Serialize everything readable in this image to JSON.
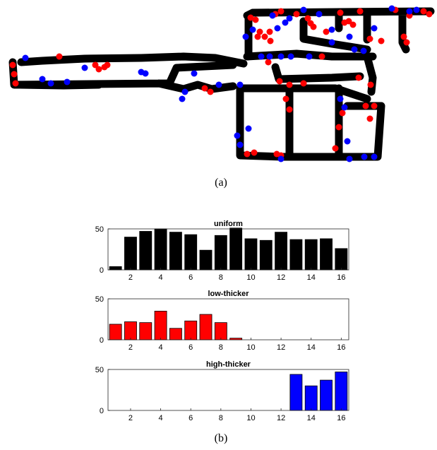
{
  "figure": {
    "caption_a": "(a)",
    "caption_b": "(b)"
  },
  "floor_plan": {
    "description_colors": {
      "path": "#000000",
      "red_points": "#ff0000",
      "blue_points": "#0000ff"
    }
  },
  "chart_data": [
    {
      "type": "bar",
      "title": "uniform",
      "xlabel": "",
      "ylabel": "",
      "x": [
        1,
        2,
        3,
        4,
        5,
        6,
        7,
        8,
        9,
        10,
        11,
        12,
        13,
        14,
        15,
        16
      ],
      "values": [
        4,
        40,
        47,
        50,
        46,
        43,
        24,
        42,
        51,
        38,
        36,
        46,
        37,
        37,
        38,
        26
      ],
      "xlim": [
        0.5,
        16.5
      ],
      "ylim": [
        0,
        50
      ],
      "xticks": [
        "2",
        "4",
        "6",
        "8",
        "10",
        "12",
        "14",
        "16"
      ],
      "yticks": [
        "0",
        "50"
      ],
      "color": "#000000"
    },
    {
      "type": "bar",
      "title": "low-thicker",
      "xlabel": "",
      "ylabel": "",
      "x": [
        1,
        2,
        3,
        4,
        5,
        6,
        7,
        8,
        9,
        10,
        11,
        12,
        13,
        14,
        15,
        16
      ],
      "values": [
        19,
        22,
        21,
        35,
        14,
        23,
        31,
        21,
        2,
        0,
        0,
        0,
        0,
        0,
        0,
        0
      ],
      "xlim": [
        0.5,
        16.5
      ],
      "ylim": [
        0,
        50
      ],
      "xticks": [
        "2",
        "4",
        "6",
        "8",
        "10",
        "12",
        "14",
        "16"
      ],
      "yticks": [
        "0",
        "50"
      ],
      "color": "#ff0000"
    },
    {
      "type": "bar",
      "title": "high-thicker",
      "xlabel": "",
      "ylabel": "",
      "x": [
        1,
        2,
        3,
        4,
        5,
        6,
        7,
        8,
        9,
        10,
        11,
        12,
        13,
        14,
        15,
        16
      ],
      "values": [
        0,
        0,
        0,
        0,
        0,
        0,
        0,
        0,
        0,
        0,
        0,
        0,
        44,
        30,
        37,
        47
      ],
      "xlim": [
        0.5,
        16.5
      ],
      "ylim": [
        0,
        50
      ],
      "xticks": [
        "2",
        "4",
        "6",
        "8",
        "10",
        "12",
        "14",
        "16"
      ],
      "yticks": [
        "0",
        "50"
      ],
      "color": "#0000ff"
    }
  ]
}
